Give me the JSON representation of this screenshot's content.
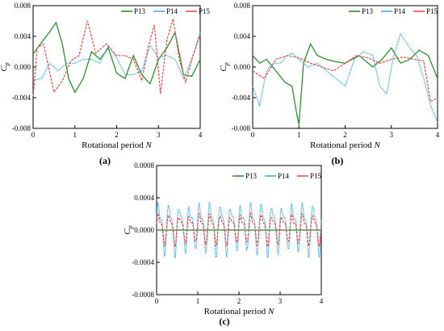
{
  "figure_labels": {
    "a": "(a)",
    "b": "(b)",
    "c": "(c)"
  },
  "colors": {
    "P13": "#1a8a1a",
    "P14": "#35a8e6",
    "P15": "#ef4444"
  },
  "chart_data": [
    {
      "panel": "a",
      "type": "line",
      "xlabel": "Rotational period N",
      "ylabel": "Cp",
      "xlim": [
        0,
        4
      ],
      "ylim": [
        -0.008,
        0.008
      ],
      "xticks": [
        "0",
        "1",
        "2",
        "3",
        "4"
      ],
      "yticks": [
        "-0.008",
        "-0.004",
        "0.000",
        "0.004",
        "0.008"
      ],
      "legend": "top-right",
      "grid": false,
      "series": [
        {
          "name": "P13",
          "x": [
            0,
            0.2,
            0.4,
            0.55,
            0.7,
            0.85,
            1.0,
            1.2,
            1.4,
            1.6,
            1.8,
            2.0,
            2.2,
            2.4,
            2.6,
            2.8,
            3.0,
            3.2,
            3.4,
            3.6,
            3.8,
            4.0
          ],
          "y": [
            0.0017,
            0.0032,
            0.0046,
            0.0058,
            0.003,
            -0.0015,
            -0.0033,
            -0.0015,
            0.002,
            0.001,
            0.0025,
            -0.0008,
            -0.0015,
            0.0015,
            -0.001,
            -0.0022,
            0.001,
            0.0025,
            0.0045,
            -0.001,
            -0.0012,
            0.001
          ]
        },
        {
          "name": "P14",
          "x": [
            0,
            0.2,
            0.4,
            0.6,
            0.8,
            1.0,
            1.2,
            1.4,
            1.6,
            1.8,
            2.0,
            2.2,
            2.4,
            2.6,
            2.8,
            3.0,
            3.2,
            3.4,
            3.6,
            3.8,
            4.0
          ],
          "y": [
            -0.0017,
            -0.0015,
            0.0005,
            -0.0005,
            0.0005,
            0.0005,
            0.001,
            0.001,
            0.0005,
            0.0028,
            0.0012,
            -0.001,
            -0.001,
            -0.0005,
            0.0028,
            0.0012,
            0.0015,
            0.001,
            -0.0015,
            0.001,
            0.0045
          ]
        },
        {
          "name": "P15",
          "x": [
            0,
            0.1,
            0.25,
            0.5,
            0.7,
            0.9,
            1.1,
            1.3,
            1.5,
            1.75,
            2.0,
            2.2,
            2.4,
            2.6,
            2.75,
            2.9,
            3.05,
            3.2,
            3.35,
            3.5,
            3.65,
            3.8,
            4.0
          ],
          "y": [
            -0.0038,
            0.0025,
            0.003,
            -0.0033,
            -0.0018,
            0.0008,
            0.0015,
            0.006,
            0.0018,
            0.003,
            0.0015,
            0.0015,
            0.001,
            -0.0018,
            0.0025,
            0.0055,
            -0.0035,
            0.0035,
            0.0063,
            0.001,
            -0.002,
            0.001,
            0.0042
          ]
        }
      ]
    },
    {
      "panel": "b",
      "type": "line",
      "xlabel": "Rotational period N",
      "ylabel": "Cp",
      "xlim": [
        0,
        4
      ],
      "ylim": [
        -0.008,
        0.008
      ],
      "xticks": [
        "0",
        "1",
        "2",
        "3",
        "4"
      ],
      "yticks": [
        "-0.008",
        "-0.004",
        "0.000",
        "0.004",
        "0.008"
      ],
      "legend": "top-right",
      "grid": false,
      "series": [
        {
          "name": "P13",
          "x": [
            0,
            0.15,
            0.3,
            0.5,
            0.7,
            0.85,
            0.95,
            1.0,
            1.1,
            1.25,
            1.4,
            1.6,
            1.8,
            2.0,
            2.3,
            2.6,
            2.8,
            3.0,
            3.2,
            3.4,
            3.6,
            3.8,
            4.0
          ],
          "y": [
            0.0015,
            0.0005,
            0.001,
            -0.0005,
            -0.002,
            -0.0025,
            -0.006,
            -0.0075,
            0.0005,
            0.003,
            0.0015,
            0.001,
            0.0007,
            0.0005,
            0.0015,
            0.0,
            0.001,
            0.0025,
            0.0005,
            0.001,
            0.0022,
            0.0015,
            -0.0015
          ]
        },
        {
          "name": "P14",
          "x": [
            0,
            0.15,
            0.3,
            0.45,
            0.6,
            0.75,
            0.85,
            1.0,
            1.2,
            1.4,
            1.6,
            1.8,
            2.0,
            2.2,
            2.4,
            2.6,
            2.75,
            2.9,
            3.05,
            3.2,
            3.4,
            3.55,
            3.7,
            3.85,
            4.0
          ],
          "y": [
            -0.0025,
            -0.005,
            -0.0005,
            0.0005,
            0.0005,
            0.0015,
            0.0018,
            0.001,
            0.0,
            0.0005,
            -0.0005,
            -0.0015,
            -0.0025,
            0.001,
            0.002,
            0.0015,
            -0.0025,
            -0.0035,
            0.0015,
            0.0043,
            0.0025,
            0.0015,
            -0.0015,
            -0.005,
            -0.0072
          ]
        },
        {
          "name": "P15",
          "x": [
            0,
            0.25,
            0.5,
            0.75,
            1.0,
            1.25,
            1.5,
            1.75,
            2.0,
            2.25,
            2.5,
            2.75,
            3.0,
            3.25,
            3.5,
            3.7,
            3.85,
            4.0
          ],
          "y": [
            -0.0005,
            -0.0015,
            0.001,
            0.0015,
            0.0012,
            0.0005,
            0.0,
            -0.0005,
            0.0005,
            0.0015,
            0.0012,
            0.0005,
            0.001,
            0.0013,
            0.001,
            0.0008,
            -0.0045,
            -0.004
          ]
        }
      ]
    },
    {
      "panel": "c",
      "type": "line",
      "xlabel": "Rotational period N",
      "ylabel": "Cp",
      "xlim": [
        0,
        4
      ],
      "ylim": [
        -0.0008,
        0.0008
      ],
      "xticks": [
        "0",
        "1",
        "2",
        "3",
        "4"
      ],
      "yticks": [
        "-0.0008",
        "-0.0004",
        "0.0000",
        "0.0004",
        "0.0008"
      ],
      "legend": "top-right",
      "grid": false,
      "series": [
        {
          "name": "P13",
          "x": [
            0,
            4
          ],
          "y": [
            0,
            0
          ]
        },
        {
          "name": "P14",
          "periods": 16,
          "amplitude": 0.00042,
          "offset": 5e-05
        },
        {
          "name": "P15",
          "periods": 16,
          "amplitude": 0.00025,
          "offset": 3e-05
        }
      ]
    }
  ]
}
